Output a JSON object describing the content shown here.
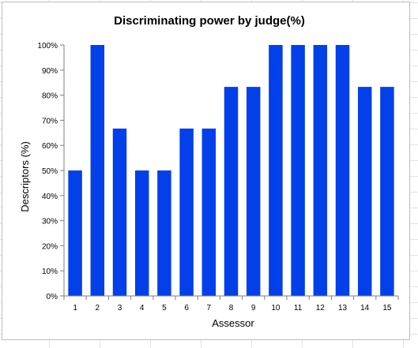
{
  "chart_data": {
    "type": "bar",
    "title": "Discriminating power by judge(%)",
    "xlabel": "Assessor",
    "ylabel": "Descriptors (%)",
    "categories": [
      "1",
      "2",
      "3",
      "4",
      "5",
      "6",
      "7",
      "8",
      "9",
      "10",
      "11",
      "12",
      "13",
      "14",
      "15"
    ],
    "values": [
      50,
      100,
      66.7,
      50,
      50,
      66.7,
      66.7,
      83.3,
      83.3,
      100,
      100,
      100,
      100,
      83.3,
      83.3
    ],
    "ylim": [
      0,
      100
    ],
    "yticks": [
      0,
      10,
      20,
      30,
      40,
      50,
      60,
      70,
      80,
      90,
      100
    ],
    "ytick_suffix": "%",
    "grid": false,
    "legend": "none",
    "bar_color": "#0340ea"
  }
}
